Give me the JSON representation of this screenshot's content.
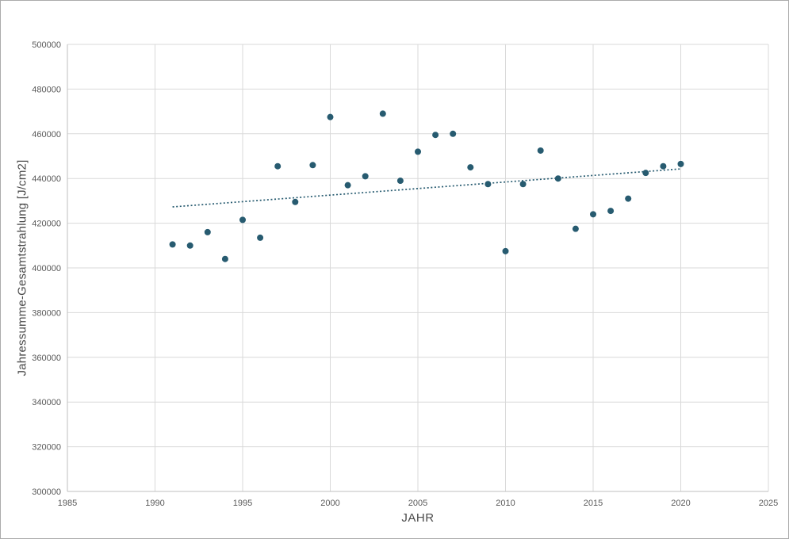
{
  "window": {
    "background": "#ffffff",
    "border_color": "#ababab"
  },
  "chart_data": {
    "type": "scatter",
    "title": "",
    "xlabel": "JAHR",
    "ylabel": "Jahressumme-Gesamtstrahlung [J/cm2]",
    "xlim": [
      1985,
      2025
    ],
    "ylim": [
      300000,
      500000
    ],
    "xticks": [
      1985,
      1990,
      1995,
      2000,
      2005,
      2010,
      2015,
      2020,
      2025
    ],
    "yticks": [
      300000,
      320000,
      340000,
      360000,
      380000,
      400000,
      420000,
      440000,
      460000,
      480000,
      500000
    ],
    "grid": true,
    "legend": "none",
    "x": [
      1991,
      1992,
      1993,
      1994,
      1995,
      1996,
      1997,
      1998,
      1999,
      2000,
      2001,
      2002,
      2003,
      2004,
      2005,
      2006,
      2007,
      2008,
      2009,
      2010,
      2011,
      2012,
      2013,
      2014,
      2015,
      2016,
      2017,
      2018,
      2019,
      2020
    ],
    "y": [
      410500,
      410000,
      416000,
      404000,
      421500,
      413500,
      445500,
      429500,
      446000,
      467500,
      437000,
      441000,
      469000,
      439000,
      452000,
      459500,
      460000,
      445000,
      437500,
      407500,
      437500,
      452500,
      440000,
      417500,
      424000,
      425500,
      431000,
      442500,
      445500,
      446500
    ],
    "trendline": {
      "style": "dotted",
      "x": [
        1991,
        2020
      ],
      "y": [
        427300,
        444300
      ]
    },
    "point_color": "#275b70",
    "point_radius": 4,
    "trend_color": "#275b70",
    "grid_color": "#d9d9d9",
    "axis_color": "#bfbfbf",
    "tick_label_color": "#595959",
    "axis_title_color": "#4a4a4a"
  }
}
